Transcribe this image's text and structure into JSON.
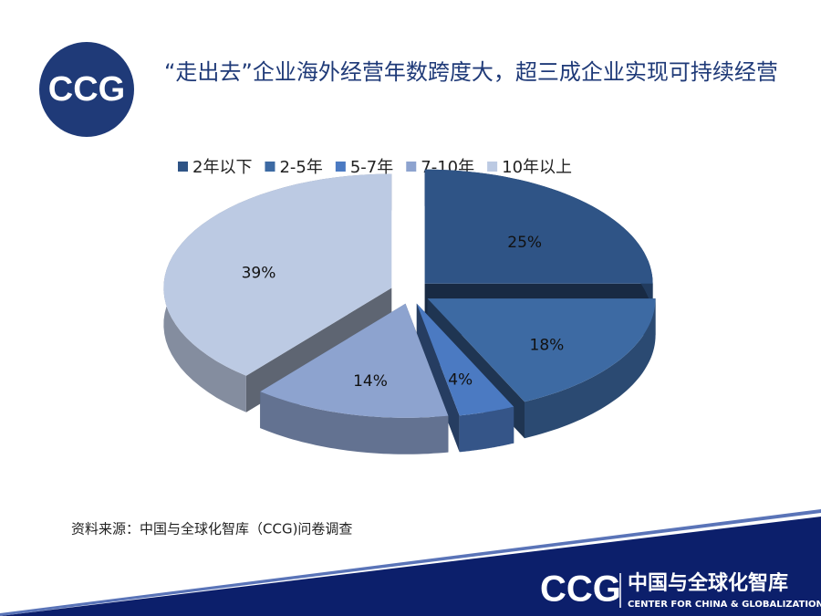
{
  "logo": "CCG",
  "chart_data": {
    "type": "pie3d",
    "title": "“走出去”企业海外经营年数跨度大，超三成企业实现可持续经营",
    "categories": [
      "2年以下",
      "2-5年",
      "5-7年",
      "7-10年",
      "10年以上"
    ],
    "values": [
      25,
      18,
      4,
      14,
      39
    ],
    "value_labels": [
      "25%",
      "18%",
      "4%",
      "14%",
      "39%"
    ],
    "colors": [
      "#2f5486",
      "#3d6aa3",
      "#4b7ac2",
      "#8da3cf",
      "#bccae3"
    ],
    "legend": "top"
  },
  "source": "资料来源：中国与全球化智库（CCG)问卷调查",
  "footer": {
    "logo": "CCG",
    "name": "中国与全球化智库",
    "english": "CENTER FOR CHINA & GLOBALIZATION"
  }
}
